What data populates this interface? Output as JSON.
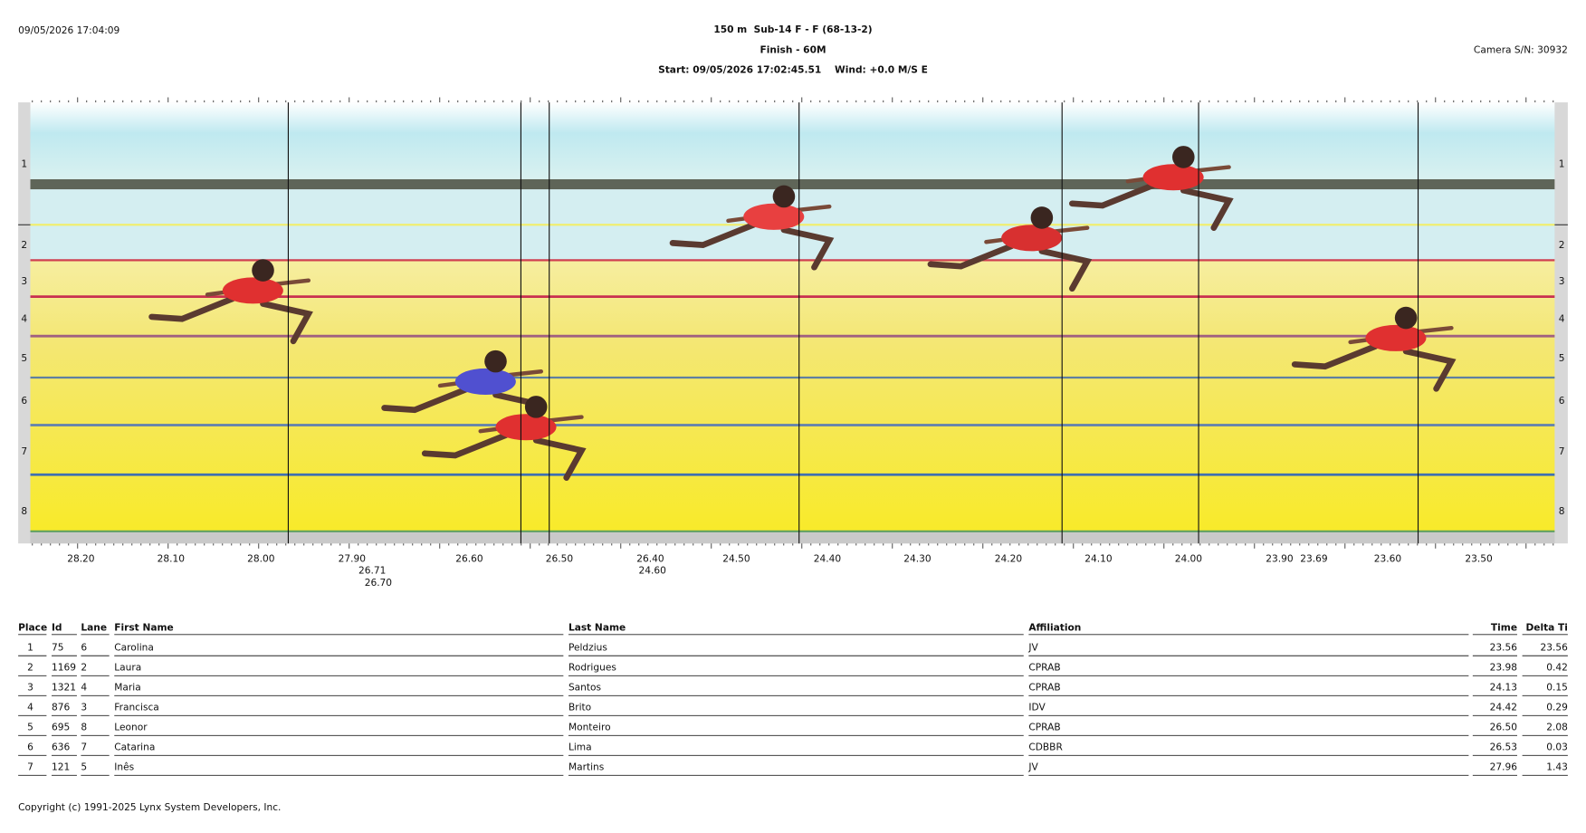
{
  "header": {
    "timestamp": "09/05/2026 17:04:09",
    "title": "150 m  Sub-14 F - F (68-13-2)",
    "finish": "Finish - 60M",
    "start": "Start: 09/05/2026 17:02:45.51    Wind: +0.0 M/S E",
    "camera": "Camera S/N: 30932"
  },
  "photo": {
    "lanes": [
      "1",
      "2",
      "3",
      "4",
      "5",
      "6",
      "7",
      "8"
    ],
    "time_labels": [
      "28.20",
      "28.10",
      "28.00",
      "27.90",
      "26.60",
      "26.50",
      "26.40",
      "24.50",
      "24.40",
      "24.30",
      "24.20",
      "24.10",
      "24.00",
      "23.90",
      "23.69",
      "23.60",
      "23.50",
      "26.71",
      "24.60",
      "26.70"
    ]
  },
  "table": {
    "columns": [
      "Place",
      "Id",
      "Lane",
      "First Name",
      "Last Name",
      "Affiliation",
      "Time",
      "Delta Ti"
    ],
    "rows": [
      [
        "1",
        "75",
        "6",
        "Carolina",
        "Peldzius",
        "JV",
        "23.56",
        "23.56"
      ],
      [
        "2",
        "1169",
        "2",
        "Laura",
        "Rodrigues",
        "CPRAB",
        "23.98",
        "0.42"
      ],
      [
        "3",
        "1321",
        "4",
        "Maria",
        "Santos",
        "CPRAB",
        "24.13",
        "0.15"
      ],
      [
        "4",
        "876",
        "3",
        "Francisca",
        "Brito",
        "IDV",
        "24.42",
        "0.29"
      ],
      [
        "5",
        "695",
        "8",
        "Leonor",
        "Monteiro",
        "CPRAB",
        "26.50",
        "2.08"
      ],
      [
        "6",
        "636",
        "7",
        "Catarina",
        "Lima",
        "CDBBR",
        "26.53",
        "0.03"
      ],
      [
        "7",
        "121",
        "5",
        "Inês",
        "Martins",
        "JV",
        "27.96",
        "1.43"
      ]
    ]
  },
  "footer": {
    "copyright": "Copyright (c) 1991-2025 Lynx System Developers, Inc."
  }
}
